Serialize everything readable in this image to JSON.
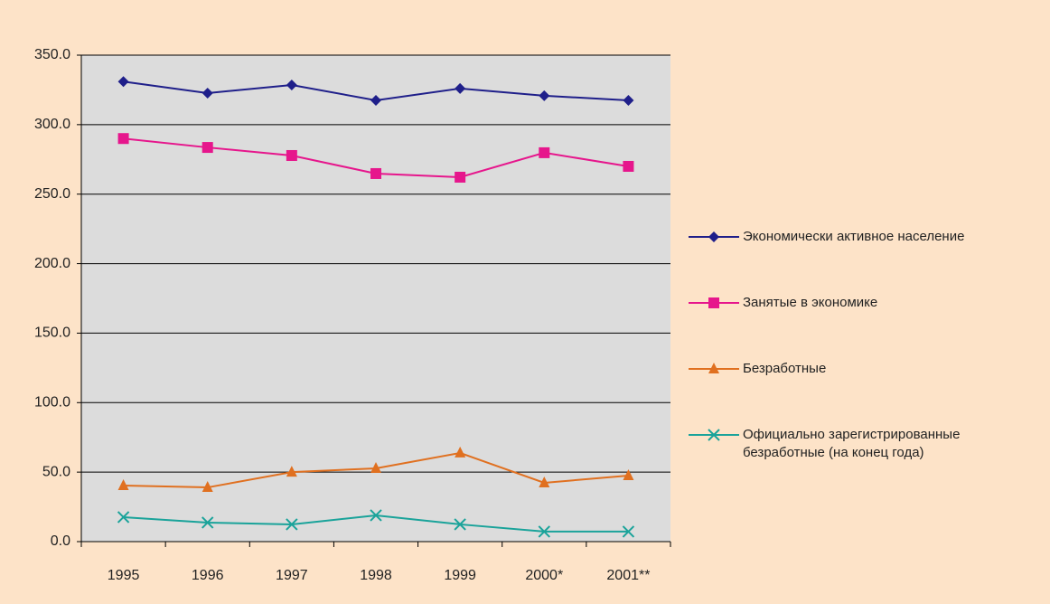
{
  "chart_data": {
    "type": "line",
    "categories": [
      "1995",
      "1996",
      "1997",
      "1998",
      "1999",
      "2000*",
      "2001**"
    ],
    "series": [
      {
        "name": "Экономически активное население",
        "color": "#1f1f8a",
        "marker": "diamond",
        "values": [
          331.0,
          322.7,
          328.5,
          317.5,
          326.0,
          320.8,
          317.5
        ]
      },
      {
        "name": "Занятые в экономике",
        "color": "#e6168c",
        "marker": "square",
        "values": [
          290.0,
          283.6,
          277.8,
          264.8,
          262.2,
          279.8,
          270.0
        ]
      },
      {
        "name": "Безработные",
        "color": "#e07020",
        "marker": "triangle",
        "values": [
          40.3,
          39.0,
          50.0,
          52.7,
          63.8,
          42.3,
          47.5
        ]
      },
      {
        "name": "Официально зарегистрированные безработные (на конец года)",
        "color": "#1aa39a",
        "marker": "x",
        "values": [
          17.6,
          13.7,
          12.4,
          18.9,
          12.4,
          7.2,
          7.2
        ]
      }
    ],
    "ylim": [
      0,
      350
    ],
    "yticks": [
      {
        "value": 0,
        "label": "0.0"
      },
      {
        "value": 50,
        "label": "50.0"
      },
      {
        "value": 100,
        "label": "100.0"
      },
      {
        "value": 150,
        "label": "150.0"
      },
      {
        "value": 200,
        "label": "200.0"
      },
      {
        "value": 250,
        "label": "250.0"
      },
      {
        "value": 300,
        "label": "300.0"
      },
      {
        "value": 350,
        "label": "350.0"
      }
    ],
    "grid": true,
    "legend": "right"
  }
}
